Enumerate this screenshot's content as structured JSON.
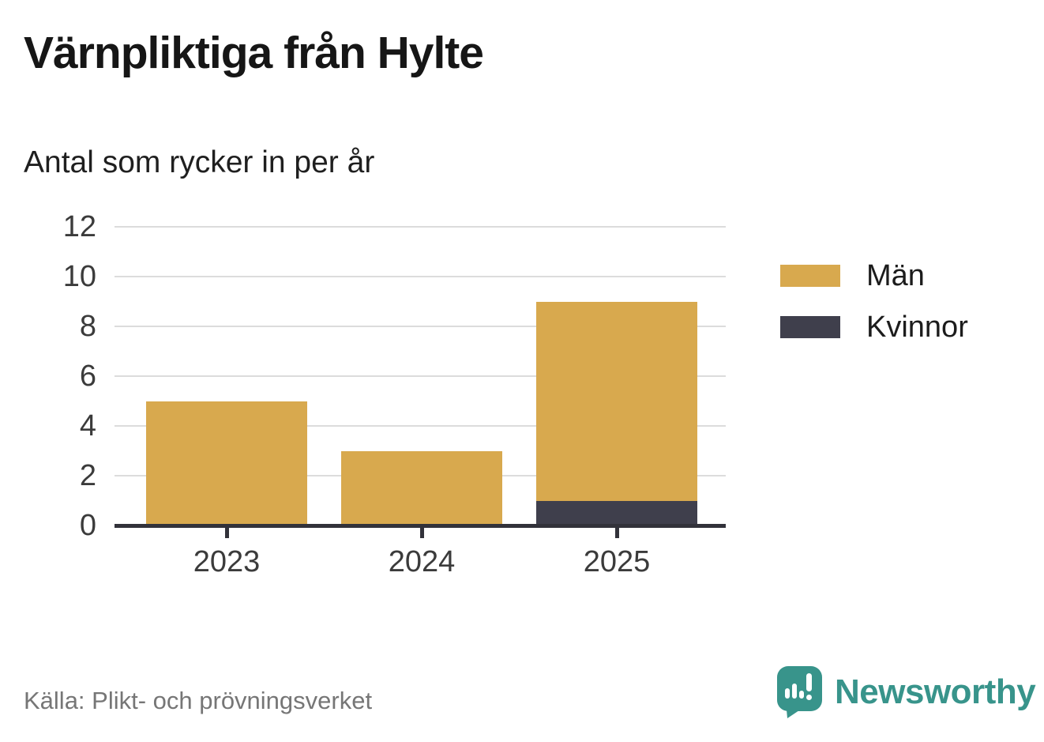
{
  "header": {
    "title": "Värnpliktiga från Hylte",
    "subtitle": "Antal som rycker in per år"
  },
  "chart_data": {
    "type": "bar",
    "stacked": true,
    "title": "Värnpliktiga från Hylte",
    "subtitle": "Antal som rycker in per år",
    "categories": [
      "2023",
      "2024",
      "2025"
    ],
    "series": [
      {
        "name": "Män",
        "color": "#d8a94e",
        "values": [
          5,
          3,
          8
        ]
      },
      {
        "name": "Kvinnor",
        "color": "#3f3f4c",
        "values": [
          0,
          0,
          1
        ]
      }
    ],
    "stack_order_bottom_to_top": [
      "Kvinnor",
      "Män"
    ],
    "totals": [
      5,
      3,
      9
    ],
    "ylim": [
      0,
      12
    ],
    "yticks": [
      0,
      2,
      4,
      6,
      8,
      10,
      12
    ],
    "grid": true,
    "legend_position": "right",
    "source": "Källa: Plikt- och prövningsverket"
  },
  "footer": {
    "source": "Källa: Plikt- och prövningsverket",
    "brand": "Newsworthy"
  },
  "colors": {
    "men_gold": "#d8a94e",
    "women_dark": "#3f3f4c",
    "brand_teal": "#38948b",
    "gridline_gray": "#dcdcdc",
    "axis_dark": "#32323a"
  }
}
